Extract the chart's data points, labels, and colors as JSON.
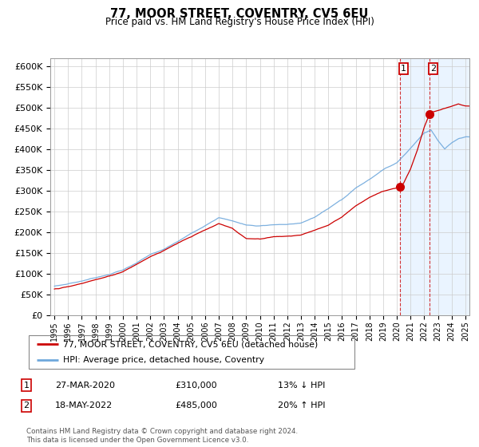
{
  "title": "77, MOOR STREET, COVENTRY, CV5 6EU",
  "subtitle": "Price paid vs. HM Land Registry's House Price Index (HPI)",
  "ylabel_ticks": [
    "£0",
    "£50K",
    "£100K",
    "£150K",
    "£200K",
    "£250K",
    "£300K",
    "£350K",
    "£400K",
    "£450K",
    "£500K",
    "£550K",
    "£600K"
  ],
  "ytick_values": [
    0,
    50000,
    100000,
    150000,
    200000,
    250000,
    300000,
    350000,
    400000,
    450000,
    500000,
    550000,
    600000
  ],
  "ylim": [
    0,
    620000
  ],
  "xlim_start": 1994.7,
  "xlim_end": 2025.3,
  "xtick_labels": [
    "1995",
    "1996",
    "1997",
    "1998",
    "1999",
    "2000",
    "2001",
    "2002",
    "2003",
    "2004",
    "2005",
    "2006",
    "2007",
    "2008",
    "2009",
    "2010",
    "2011",
    "2012",
    "2013",
    "2014",
    "2015",
    "2016",
    "2017",
    "2018",
    "2019",
    "2020",
    "2021",
    "2022",
    "2023",
    "2024",
    "2025"
  ],
  "hpi_color": "#6fa8dc",
  "price_color": "#cc0000",
  "transaction1_x": 2020.22,
  "transaction1_y": 310000,
  "transaction2_x": 2022.37,
  "transaction2_y": 485000,
  "legend_entries": [
    "77, MOOR STREET, COVENTRY, CV5 6EU (detached house)",
    "HPI: Average price, detached house, Coventry"
  ],
  "annotation1_num": "1",
  "annotation1_date": "27-MAR-2020",
  "annotation1_price": "£310,000",
  "annotation1_hpi": "13% ↓ HPI",
  "annotation2_num": "2",
  "annotation2_date": "18-MAY-2022",
  "annotation2_price": "£485,000",
  "annotation2_hpi": "20% ↑ HPI",
  "footer": "Contains HM Land Registry data © Crown copyright and database right 2024.\nThis data is licensed under the Open Government Licence v3.0.",
  "background_color": "#ffffff",
  "plot_background": "#ffffff",
  "grid_color": "#cccccc",
  "highlight_bg": "#ddeeff"
}
